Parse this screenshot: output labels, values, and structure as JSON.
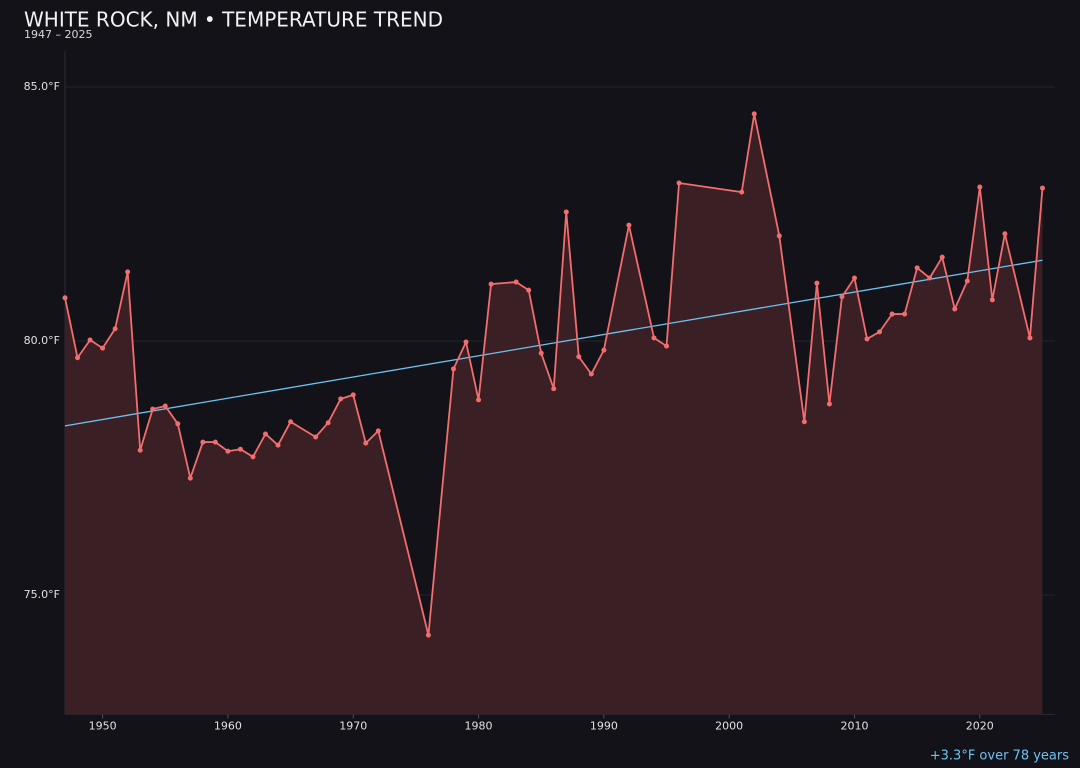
{
  "chart_data": {
    "type": "line",
    "title": "WHITE ROCK, NM • TEMPERATURE TREND",
    "subtitle": "1947 – 2025",
    "annotation": "+3.3°F over 78 years",
    "x": [
      1947,
      1948,
      1949,
      1950,
      1951,
      1952,
      1953,
      1954,
      1955,
      1956,
      1957,
      1958,
      1959,
      1960,
      1961,
      1962,
      1963,
      1964,
      1965,
      1967,
      1968,
      1969,
      1970,
      1971,
      1972,
      1976,
      1978,
      1979,
      1980,
      1981,
      1983,
      1984,
      1985,
      1986,
      1987,
      1988,
      1989,
      1990,
      1992,
      1994,
      1995,
      1996,
      2001,
      2002,
      2004,
      2006,
      2007,
      2008,
      2009,
      2010,
      2011,
      2012,
      2013,
      2014,
      2015,
      2016,
      2017,
      2018,
      2019,
      2020,
      2021,
      2022,
      2024,
      2025
    ],
    "series": [
      {
        "name": "Temperature",
        "color": "#f26d6d",
        "fill": "#3a1f25",
        "values": [
          80.85,
          79.67,
          80.02,
          79.86,
          80.24,
          81.36,
          77.85,
          78.66,
          78.72,
          78.37,
          77.3,
          78.01,
          78.01,
          77.83,
          77.87,
          77.72,
          78.17,
          77.95,
          78.41,
          78.11,
          78.39,
          78.86,
          78.94,
          77.99,
          78.23,
          74.21,
          79.45,
          79.98,
          78.84,
          81.12,
          81.16,
          81.0,
          79.76,
          79.06,
          82.54,
          79.69,
          79.35,
          79.82,
          82.28,
          80.06,
          79.9,
          83.11,
          82.93,
          84.47,
          82.07,
          78.41,
          81.14,
          78.76,
          80.87,
          81.24,
          80.04,
          80.18,
          80.53,
          80.53,
          81.44,
          81.24,
          81.65,
          80.63,
          81.18,
          83.03,
          80.81,
          82.11,
          80.06,
          83.01
        ]
      }
    ],
    "trend": {
      "color": "#6cc3f0",
      "x": [
        1947,
        2025
      ],
      "values": [
        78.33,
        81.59
      ]
    },
    "xlim": [
      1947,
      2026
    ],
    "ylim": [
      72.65,
      85.7
    ],
    "xticks": [
      1950,
      1960,
      1970,
      1980,
      1990,
      2000,
      2010,
      2020
    ],
    "yticks": [
      {
        "value": 75,
        "label": "75.0°F"
      },
      {
        "value": 80,
        "label": "80.0°F"
      },
      {
        "value": 85,
        "label": "85.0°F"
      }
    ],
    "grid": true
  }
}
